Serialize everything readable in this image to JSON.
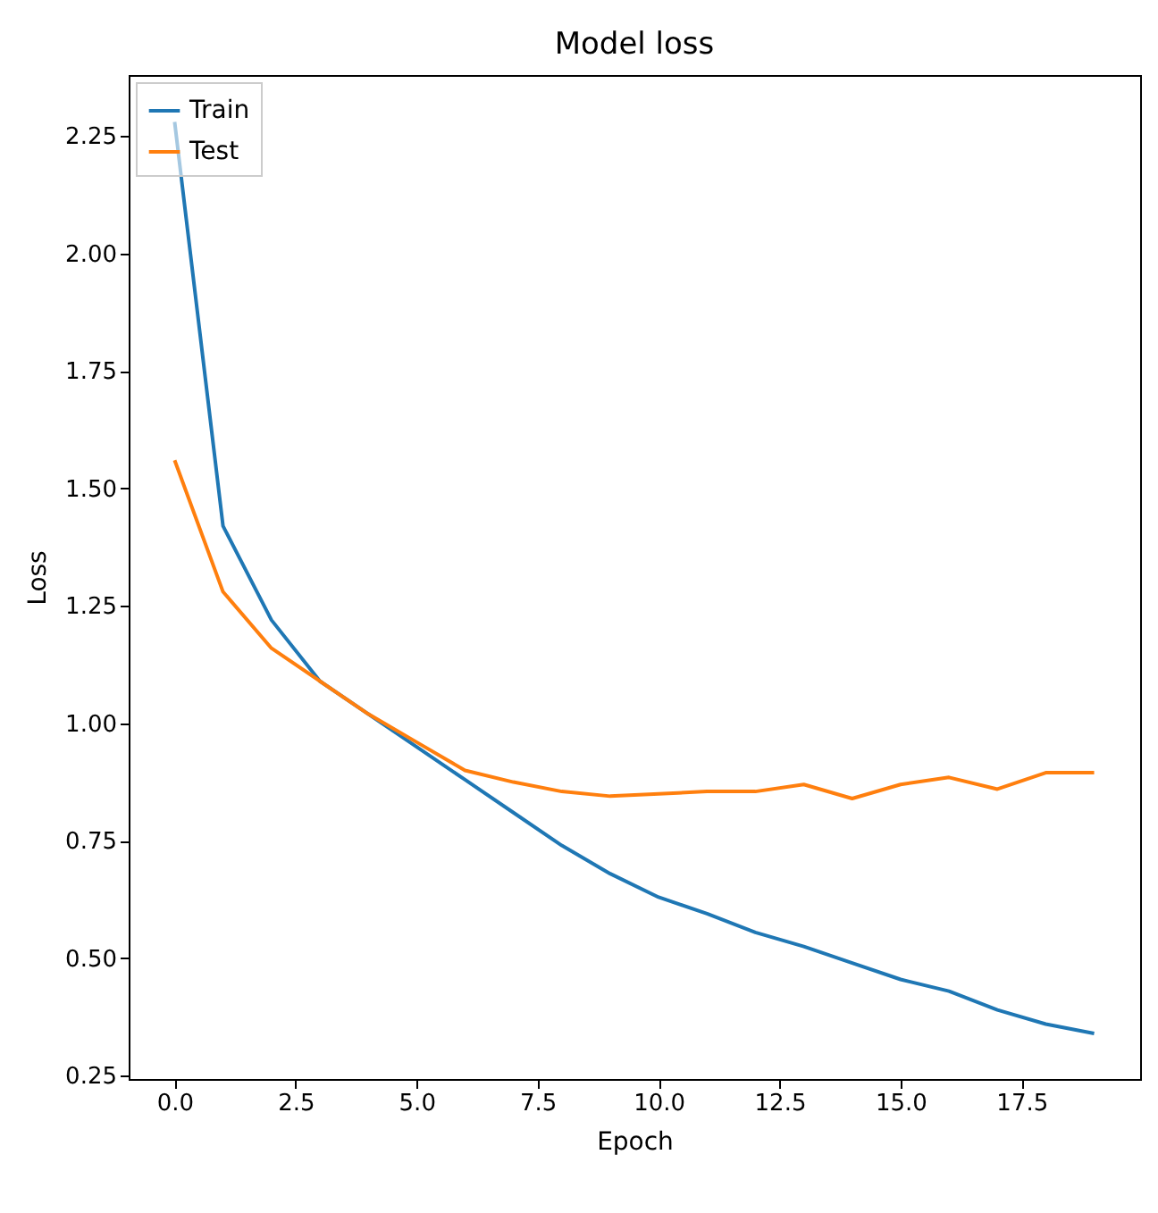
{
  "chart_data": {
    "type": "line",
    "title": "Model loss",
    "xlabel": "Epoch",
    "ylabel": "Loss",
    "x": [
      0,
      1,
      2,
      3,
      4,
      5,
      6,
      7,
      8,
      9,
      10,
      11,
      12,
      13,
      14,
      15,
      16,
      17,
      18,
      19
    ],
    "series": [
      {
        "name": "Train",
        "color": "#1f77b4",
        "values": [
          2.28,
          1.42,
          1.22,
          1.09,
          1.02,
          0.95,
          0.88,
          0.81,
          0.74,
          0.68,
          0.63,
          0.595,
          0.555,
          0.525,
          0.49,
          0.455,
          0.43,
          0.39,
          0.36,
          0.34
        ]
      },
      {
        "name": "Test",
        "color": "#ff7f0e",
        "values": [
          1.56,
          1.28,
          1.16,
          1.09,
          1.02,
          0.96,
          0.9,
          0.875,
          0.855,
          0.845,
          0.85,
          0.855,
          0.855,
          0.87,
          0.84,
          0.87,
          0.885,
          0.86,
          0.895,
          0.895
        ]
      }
    ],
    "xlim": [
      -0.95,
      19.95
    ],
    "xticks": [
      {
        "value": 0,
        "label": "0.0"
      },
      2.5,
      {
        "value": 5,
        "label": "5.0"
      },
      7.5,
      {
        "value": 10,
        "label": "10.0"
      },
      12.5,
      {
        "value": 15,
        "label": "15.0"
      },
      17.5
    ],
    "ylim": [
      0.243,
      2.38
    ],
    "yticks": [
      0.25,
      {
        "value": 0.5,
        "label": "0.50"
      },
      0.75,
      {
        "value": 1,
        "label": "1.00"
      },
      1.25,
      {
        "value": 1.5,
        "label": "1.50"
      },
      1.75,
      {
        "value": 2,
        "label": "2.00"
      },
      2.25
    ],
    "grid": false,
    "legend": "top left"
  }
}
